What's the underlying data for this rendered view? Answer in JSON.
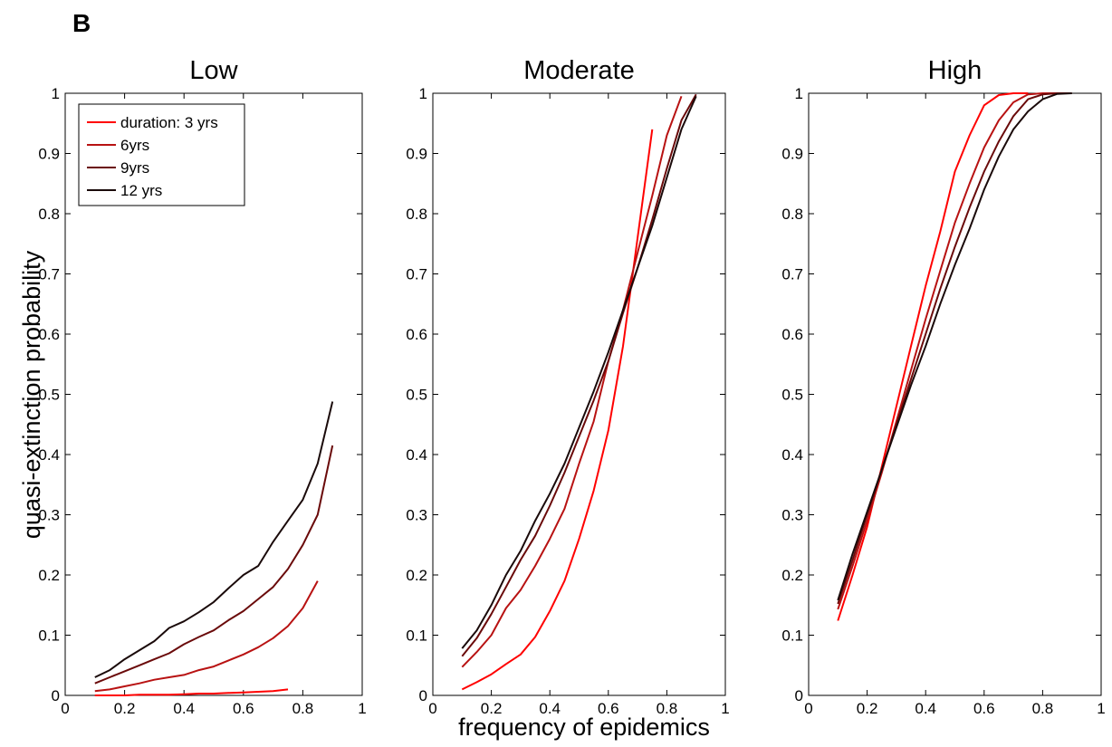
{
  "figure": {
    "panel_letter": "B",
    "xlabel": "frequency of epidemics",
    "ylabel": "quasi-extinction probability"
  },
  "legend": {
    "entries": [
      "duration: 3 yrs",
      "6yrs",
      "9yrs",
      "12 yrs"
    ]
  },
  "colors": {
    "duration_3": "#ff0000",
    "duration_6": "#b81212",
    "duration_9": "#6a0a0a",
    "duration_12": "#1a0a0a"
  },
  "chart_data": [
    {
      "type": "line",
      "title": "Low",
      "xlim": [
        0,
        1
      ],
      "ylim": [
        0,
        1
      ],
      "xticks": [
        "0",
        "0.2",
        "0.4",
        "0.6",
        "0.8",
        "1"
      ],
      "yticks": [
        "0",
        "0.1",
        "0.2",
        "0.3",
        "0.4",
        "0.5",
        "0.6",
        "0.7",
        "0.8",
        "0.9",
        "1"
      ],
      "legend_position": "top-left",
      "series": [
        {
          "name": "duration: 3 yrs",
          "x": [
            0.1,
            0.15,
            0.2,
            0.25,
            0.3,
            0.35,
            0.4,
            0.45,
            0.5,
            0.55,
            0.6,
            0.65,
            0.7,
            0.75
          ],
          "y": [
            0.0,
            0.0,
            0.0,
            0.001,
            0.001,
            0.001,
            0.002,
            0.003,
            0.003,
            0.004,
            0.005,
            0.006,
            0.007,
            0.01
          ]
        },
        {
          "name": "6yrs",
          "x": [
            0.1,
            0.15,
            0.2,
            0.25,
            0.3,
            0.35,
            0.4,
            0.45,
            0.5,
            0.55,
            0.6,
            0.65,
            0.7,
            0.75,
            0.8,
            0.85
          ],
          "y": [
            0.007,
            0.01,
            0.015,
            0.02,
            0.026,
            0.03,
            0.034,
            0.042,
            0.048,
            0.058,
            0.068,
            0.08,
            0.095,
            0.115,
            0.145,
            0.19
          ]
        },
        {
          "name": "9yrs",
          "x": [
            0.1,
            0.15,
            0.2,
            0.25,
            0.3,
            0.35,
            0.4,
            0.45,
            0.5,
            0.55,
            0.6,
            0.65,
            0.7,
            0.75,
            0.8,
            0.85,
            0.9
          ],
          "y": [
            0.02,
            0.03,
            0.04,
            0.05,
            0.06,
            0.07,
            0.085,
            0.097,
            0.108,
            0.125,
            0.14,
            0.16,
            0.18,
            0.21,
            0.25,
            0.3,
            0.415
          ]
        },
        {
          "name": "12 yrs",
          "x": [
            0.1,
            0.15,
            0.2,
            0.25,
            0.3,
            0.35,
            0.4,
            0.45,
            0.5,
            0.55,
            0.6,
            0.65,
            0.7,
            0.75,
            0.8,
            0.85,
            0.9
          ],
          "y": [
            0.03,
            0.042,
            0.06,
            0.075,
            0.09,
            0.112,
            0.123,
            0.138,
            0.155,
            0.178,
            0.2,
            0.215,
            0.255,
            0.29,
            0.325,
            0.385,
            0.488
          ]
        }
      ]
    },
    {
      "type": "line",
      "title": "Moderate",
      "xlim": [
        0,
        1
      ],
      "ylim": [
        0,
        1
      ],
      "xticks": [
        "0",
        "0.2",
        "0.4",
        "0.6",
        "0.8",
        "1"
      ],
      "yticks": [
        "0",
        "0.1",
        "0.2",
        "0.3",
        "0.4",
        "0.5",
        "0.6",
        "0.7",
        "0.8",
        "0.9",
        "1"
      ],
      "series": [
        {
          "name": "duration: 3 yrs",
          "x": [
            0.1,
            0.15,
            0.2,
            0.25,
            0.3,
            0.35,
            0.4,
            0.45,
            0.5,
            0.55,
            0.6,
            0.65,
            0.7,
            0.75
          ],
          "y": [
            0.01,
            0.022,
            0.035,
            0.052,
            0.068,
            0.097,
            0.14,
            0.19,
            0.26,
            0.34,
            0.44,
            0.58,
            0.76,
            0.94
          ]
        },
        {
          "name": "6yrs",
          "x": [
            0.1,
            0.15,
            0.2,
            0.25,
            0.3,
            0.35,
            0.4,
            0.45,
            0.5,
            0.55,
            0.6,
            0.65,
            0.7,
            0.75,
            0.8,
            0.85
          ],
          "y": [
            0.047,
            0.072,
            0.1,
            0.145,
            0.175,
            0.215,
            0.26,
            0.31,
            0.385,
            0.455,
            0.555,
            0.64,
            0.735,
            0.83,
            0.93,
            0.995
          ]
        },
        {
          "name": "9yrs",
          "x": [
            0.1,
            0.15,
            0.2,
            0.25,
            0.3,
            0.35,
            0.4,
            0.45,
            0.5,
            0.55,
            0.6,
            0.65,
            0.7,
            0.75,
            0.8,
            0.85,
            0.9
          ],
          "y": [
            0.065,
            0.095,
            0.135,
            0.18,
            0.225,
            0.265,
            0.315,
            0.37,
            0.43,
            0.49,
            0.555,
            0.635,
            0.71,
            0.79,
            0.875,
            0.955,
            0.998
          ]
        },
        {
          "name": "12 yrs",
          "x": [
            0.1,
            0.15,
            0.2,
            0.25,
            0.3,
            0.35,
            0.4,
            0.45,
            0.5,
            0.55,
            0.6,
            0.65,
            0.7,
            0.75,
            0.8,
            0.85,
            0.9
          ],
          "y": [
            0.078,
            0.108,
            0.15,
            0.2,
            0.24,
            0.29,
            0.335,
            0.385,
            0.445,
            0.505,
            0.57,
            0.64,
            0.71,
            0.78,
            0.86,
            0.94,
            0.995
          ]
        }
      ]
    },
    {
      "type": "line",
      "title": "High",
      "xlim": [
        0,
        1
      ],
      "ylim": [
        0,
        1
      ],
      "xticks": [
        "0",
        "0.2",
        "0.4",
        "0.6",
        "0.8",
        "1"
      ],
      "yticks": [
        "0",
        "0.1",
        "0.2",
        "0.3",
        "0.4",
        "0.5",
        "0.6",
        "0.7",
        "0.8",
        "0.9",
        "1"
      ],
      "series": [
        {
          "name": "duration: 3 yrs",
          "x": [
            0.1,
            0.15,
            0.2,
            0.25,
            0.3,
            0.35,
            0.4,
            0.45,
            0.5,
            0.55,
            0.6,
            0.65,
            0.7,
            0.75
          ],
          "y": [
            0.124,
            0.2,
            0.28,
            0.38,
            0.48,
            0.58,
            0.68,
            0.77,
            0.87,
            0.93,
            0.98,
            0.997,
            1.0,
            1.0
          ]
        },
        {
          "name": "6yrs",
          "x": [
            0.1,
            0.15,
            0.2,
            0.25,
            0.3,
            0.35,
            0.4,
            0.45,
            0.5,
            0.55,
            0.6,
            0.65,
            0.7,
            0.75,
            0.8,
            0.85
          ],
          "y": [
            0.143,
            0.215,
            0.29,
            0.37,
            0.455,
            0.54,
            0.625,
            0.705,
            0.785,
            0.85,
            0.91,
            0.955,
            0.985,
            0.998,
            1.0,
            1.0
          ]
        },
        {
          "name": "9yrs",
          "x": [
            0.1,
            0.15,
            0.2,
            0.25,
            0.3,
            0.35,
            0.4,
            0.45,
            0.5,
            0.55,
            0.6,
            0.65,
            0.7,
            0.75,
            0.8,
            0.85,
            0.9
          ],
          "y": [
            0.152,
            0.225,
            0.3,
            0.375,
            0.45,
            0.525,
            0.6,
            0.675,
            0.745,
            0.81,
            0.87,
            0.92,
            0.962,
            0.99,
            0.998,
            1.0,
            1.0
          ]
        },
        {
          "name": "12 yrs",
          "x": [
            0.1,
            0.15,
            0.2,
            0.25,
            0.3,
            0.35,
            0.4,
            0.45,
            0.5,
            0.55,
            0.6,
            0.65,
            0.7,
            0.75,
            0.8,
            0.85,
            0.9
          ],
          "y": [
            0.158,
            0.235,
            0.305,
            0.375,
            0.445,
            0.515,
            0.58,
            0.65,
            0.715,
            0.775,
            0.84,
            0.895,
            0.94,
            0.97,
            0.99,
            0.999,
            1.0
          ]
        }
      ]
    }
  ]
}
